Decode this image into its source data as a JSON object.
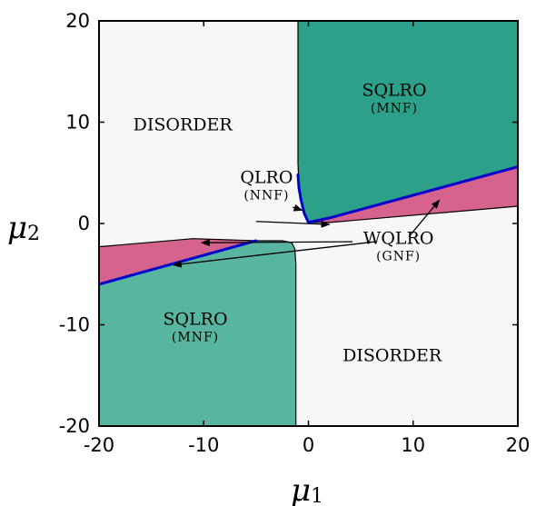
{
  "chart_data": {
    "type": "area",
    "title": "",
    "xlabel": {
      "symbol": "μ",
      "subscript": "1"
    },
    "ylabel": {
      "symbol": "μ",
      "subscript": "2"
    },
    "xlim": [
      -20,
      20
    ],
    "ylim": [
      -20,
      20
    ],
    "xticks": [
      -20,
      -10,
      0,
      10,
      20
    ],
    "yticks": [
      -20,
      -10,
      0,
      10,
      20
    ],
    "xtick_labels": [
      "-20",
      "-10",
      "0",
      "10",
      "20"
    ],
    "ytick_labels": [
      "-20",
      "-10",
      "0",
      "10",
      "20"
    ],
    "grid": false,
    "colors": {
      "background": "#f7f7f7",
      "sqlro_upper": "#2ca089",
      "sqlro_lower": "#58b6a0",
      "wqlro": "#d6628e",
      "qlro_line": "#0000cc",
      "outline": "#000000"
    },
    "regions": [
      {
        "name": "SQLRO",
        "sub": "(MNF)",
        "color": "sqlro_upper",
        "boundary": [
          [
            -1.0,
            20
          ],
          [
            -1.0,
            6
          ],
          [
            -0.9,
            3.5
          ],
          [
            -0.7,
            2.3
          ],
          [
            -0.4,
            1.0
          ],
          [
            -0.2,
            0.4
          ],
          [
            0,
            0.1
          ],
          [
            2,
            0.55
          ],
          [
            20,
            5.6
          ],
          [
            20,
            20
          ]
        ]
      },
      {
        "name": "WQLRO",
        "sub": "(GNF)",
        "color": "wqlro",
        "boundary": [
          [
            0,
            0.1
          ],
          [
            2,
            0.55
          ],
          [
            20,
            5.6
          ],
          [
            20,
            1.7
          ],
          [
            2,
            0.1
          ]
        ]
      },
      {
        "name": "SQLRO",
        "sub": "(MNF)",
        "color": "sqlro_lower",
        "boundary": [
          [
            -20,
            -20
          ],
          [
            -20,
            -6.0
          ],
          [
            -5,
            -1.7
          ],
          [
            -2.5,
            -1.7
          ],
          [
            -1.6,
            -1.9
          ],
          [
            -1.3,
            -2.5
          ],
          [
            -1.2,
            -4
          ],
          [
            -1.2,
            -20
          ]
        ]
      },
      {
        "name": "WQLRO",
        "sub": "(GNF)",
        "color": "wqlro",
        "boundary": [
          [
            -20,
            -6.0
          ],
          [
            -5,
            -1.7
          ],
          [
            -11,
            -1.5
          ],
          [
            -20,
            -2.3
          ]
        ]
      }
    ],
    "qlro_lines": [
      {
        "name": "QLRO",
        "x": [
          -1.0,
          -0.9,
          -0.7,
          -0.4,
          0,
          2,
          20
        ],
        "y": [
          4.8,
          3.5,
          2.3,
          1.0,
          0.1,
          0.55,
          5.6
        ]
      },
      {
        "name": "QLRO",
        "x": [
          -20,
          -5
        ],
        "y": [
          -6.0,
          -1.7
        ]
      }
    ],
    "annotations": [
      {
        "text": "DISORDER",
        "x": -12.0,
        "y": 9.2
      },
      {
        "text": "SQLRO",
        "sub": "(MNF)",
        "x": 8.2,
        "y": 12.6
      },
      {
        "text": "QLRO",
        "sub": "(NNF)",
        "x": -4.0,
        "y": 4.0
      },
      {
        "text": "WQLRO",
        "sub": "(GNF)",
        "x": 8.6,
        "y": -2.0
      },
      {
        "text": "SQLRO",
        "sub": "(MNF)",
        "x": -10.8,
        "y": -10.0
      },
      {
        "text": "DISORDER",
        "x": 8.0,
        "y": -13.6
      }
    ],
    "arrows": [
      {
        "from": [
          -1.5,
          1.6
        ],
        "to": [
          -0.6,
          1.3
        ]
      },
      {
        "from": [
          -5.0,
          0.2
        ],
        "to": [
          2.0,
          -0.1
        ]
      },
      {
        "from": [
          4.2,
          -1.8
        ],
        "to": [
          -10.2,
          -1.9
        ]
      },
      {
        "from": [
          6.4,
          -1.8
        ],
        "to": [
          -12.9,
          -4.1
        ]
      },
      {
        "from": [
          9.6,
          -1.3
        ],
        "to": [
          12.5,
          2.3
        ]
      }
    ]
  }
}
